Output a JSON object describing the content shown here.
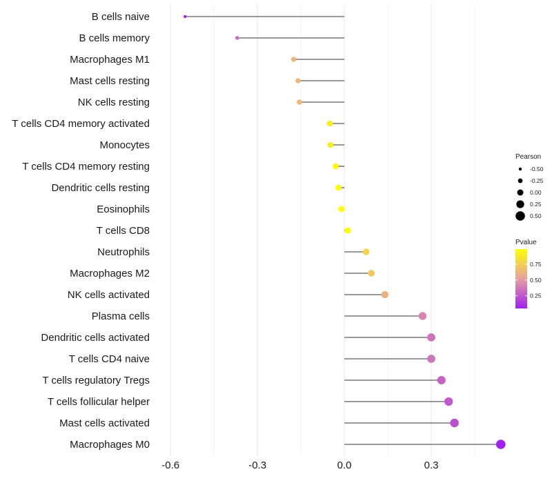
{
  "chart_data": {
    "type": "lollipop",
    "title": "",
    "xlabel": "",
    "ylabel": "",
    "xlim": [
      -0.66,
      0.55
    ],
    "x_ticks": [
      -0.6,
      -0.3,
      0.0,
      0.3
    ],
    "x_tick_labels": [
      "-0.6",
      "-0.3",
      "0.0",
      "0.3"
    ],
    "grid": true,
    "categories": [
      "B cells naive",
      "B cells memory",
      "Macrophages M1",
      "Mast cells resting",
      "NK cells resting",
      "T cells CD4 memory activated",
      "Monocytes",
      "T cells CD4 memory resting",
      "Dendritic cells resting",
      "Eosinophils",
      "T cells CD8",
      "Neutrophils",
      "Macrophages M2",
      "NK cells activated",
      "Plasma cells",
      "Dendritic cells activated",
      "T cells CD4 naive",
      "T cells regulatory  Tregs ",
      "T cells follicular helper",
      "Mast cells activated",
      "Macrophages M0"
    ],
    "pearson": [
      -0.55,
      -0.37,
      -0.175,
      -0.16,
      -0.155,
      -0.05,
      -0.048,
      -0.03,
      -0.02,
      -0.01,
      0.012,
      0.075,
      0.093,
      0.14,
      0.27,
      0.3,
      0.3,
      0.335,
      0.36,
      0.38,
      0.54
    ],
    "pvalue": [
      0.05,
      0.32,
      0.62,
      0.64,
      0.64,
      0.9,
      0.9,
      0.95,
      0.97,
      0.99,
      0.99,
      0.77,
      0.72,
      0.62,
      0.42,
      0.36,
      0.36,
      0.3,
      0.26,
      0.22,
      0.01
    ],
    "legend_position": "right",
    "size_legend": {
      "title": "Pearson",
      "values": [
        -0.5,
        -0.25,
        0.0,
        0.25,
        0.5
      ],
      "labels": [
        "-0.50",
        "-0.25",
        "0.00",
        "0.25",
        "0.50"
      ]
    },
    "color_legend": {
      "title": "Pvalue",
      "range": [
        0.05,
        0.99
      ],
      "ticks": [
        0.25,
        0.5,
        0.75
      ],
      "tick_labels": [
        "0.25",
        "0.50",
        "0.75"
      ],
      "low_color": "#a020f0",
      "mid_color": "#e6a0a0",
      "high_color": "#ffff00"
    },
    "segment_color": "#333333"
  }
}
